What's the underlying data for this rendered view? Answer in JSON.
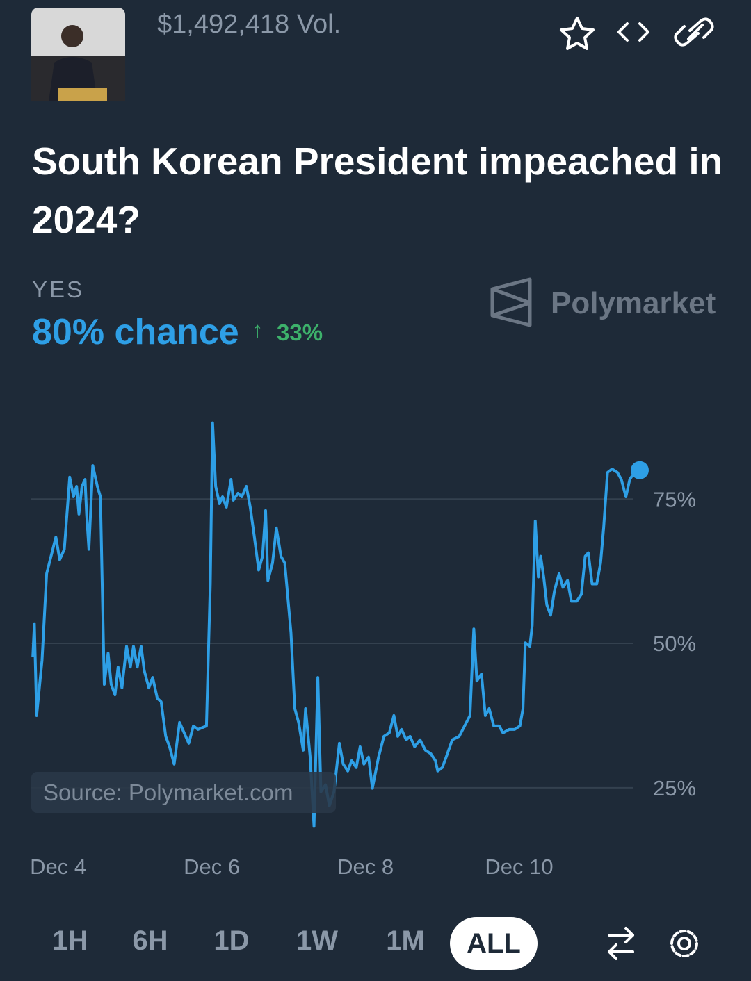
{
  "header": {
    "volume": "$1,492,418 Vol.",
    "title": "South Korean President impeached in 2024?"
  },
  "outcome": {
    "label": "YES",
    "chance": "80% chance",
    "change": "33%"
  },
  "brand": "Polymarket",
  "source": "Source: Polymarket.com",
  "range_buttons": [
    "1H",
    "6H",
    "1D",
    "1W",
    "1M",
    "ALL"
  ],
  "chart_data": {
    "type": "line",
    "color": "#2e9fe6",
    "grid": true,
    "x": [
      3.67,
      3.69,
      3.72,
      3.79,
      3.85,
      3.97,
      4.02,
      4.08,
      4.15,
      4.2,
      4.24,
      4.27,
      4.31,
      4.35,
      4.37,
      4.4,
      4.45,
      4.51,
      4.55,
      4.6,
      4.65,
      4.69,
      4.74,
      4.78,
      4.83,
      4.89,
      4.94,
      4.98,
      5.03,
      5.08,
      5.12,
      5.18,
      5.23,
      5.29,
      5.34,
      5.4,
      5.45,
      5.51,
      5.58,
      5.64,
      5.7,
      5.76,
      5.82,
      5.93,
      5.98,
      6.01,
      6.05,
      6.1,
      6.14,
      6.19,
      6.25,
      6.28,
      6.34,
      6.39,
      6.45,
      6.5,
      6.55,
      6.61,
      6.66,
      6.7,
      6.73,
      6.79,
      6.84,
      6.9,
      6.95,
      7.03,
      7.08,
      7.13,
      7.19,
      7.22,
      7.28,
      7.33,
      7.38,
      7.42,
      7.48,
      7.53,
      7.59,
      7.66,
      7.71,
      7.77,
      7.82,
      7.88,
      7.93,
      7.98,
      8.04,
      8.09,
      8.17,
      8.24,
      8.31,
      8.37,
      8.42,
      8.47,
      8.53,
      8.58,
      8.64,
      8.71,
      8.78,
      8.85,
      8.91,
      8.94,
      9.0,
      9.05,
      9.13,
      9.22,
      9.29,
      9.36,
      9.41,
      9.45,
      9.51,
      9.56,
      9.61,
      9.67,
      9.74,
      9.79,
      9.87,
      9.94,
      10.01,
      10.05,
      10.08,
      10.14,
      10.17,
      10.21,
      10.25,
      10.28,
      10.32,
      10.36,
      10.41,
      10.46,
      10.52,
      10.57,
      10.63,
      10.68,
      10.75,
      10.81,
      10.86,
      10.9,
      10.95,
      11.01,
      11.06,
      11.1,
      11.15,
      11.21,
      11.28,
      11.33,
      11.39,
      11.44,
      11.5,
      11.57
    ],
    "series": [
      {
        "name": "YES",
        "values": [
          47.7,
          53.4,
          37.5,
          47.1,
          62.1,
          68.4,
          64.5,
          66.3,
          78.8,
          75.4,
          77.2,
          72.4,
          77.2,
          78.4,
          72.4,
          66.3,
          80.8,
          77.2,
          75.4,
          42.9,
          48.3,
          42.9,
          41.1,
          45.9,
          42.3,
          49.5,
          45.9,
          49.5,
          45.9,
          49.5,
          45.3,
          42.3,
          44.1,
          40.5,
          39.9,
          33.9,
          32.1,
          29.1,
          36.3,
          34.5,
          32.7,
          35.7,
          35.1,
          35.7,
          60.3,
          88.2,
          77.2,
          74.2,
          75.4,
          73.6,
          78.4,
          74.8,
          76.0,
          75.4,
          77.2,
          73.6,
          68.8,
          62.7,
          65.1,
          73.0,
          60.9,
          63.9,
          70.0,
          65.1,
          63.9,
          51.9,
          38.7,
          36.3,
          31.5,
          38.7,
          30.3,
          18.3,
          44.1,
          24.3,
          25.5,
          21.9,
          24.3,
          32.7,
          29.1,
          27.9,
          29.7,
          28.5,
          32.1,
          29.1,
          30.3,
          24.9,
          30.3,
          33.9,
          34.5,
          37.5,
          33.9,
          35.1,
          33.3,
          33.9,
          32.1,
          33.3,
          31.5,
          30.9,
          29.7,
          27.9,
          28.5,
          30.3,
          33.3,
          33.9,
          35.7,
          37.5,
          52.5,
          43.5,
          44.7,
          37.5,
          38.7,
          35.7,
          35.7,
          34.5,
          35.1,
          35.1,
          35.7,
          38.7,
          50.1,
          49.5,
          53.1,
          71.2,
          61.5,
          65.1,
          61.5,
          56.7,
          54.9,
          59.1,
          62.1,
          59.7,
          60.9,
          57.3,
          57.3,
          58.5,
          65.1,
          65.7,
          60.3,
          60.3,
          63.9,
          70.0,
          79.6,
          80.2,
          79.6,
          78.4,
          75.4,
          78.4,
          79.6,
          80.0
        ]
      }
    ],
    "xlim": [
      3.65,
      11.57
    ],
    "xticks": [
      {
        "value": 4,
        "label": "Dec 4"
      },
      {
        "value": 6,
        "label": "Dec 6"
      },
      {
        "value": 8,
        "label": "Dec 8"
      },
      {
        "value": 10,
        "label": "Dec 10"
      }
    ],
    "ylim": [
      18,
      92
    ],
    "yticks": [
      {
        "value": 25,
        "label": "25%"
      },
      {
        "value": 50,
        "label": "50%"
      },
      {
        "value": 75,
        "label": "75%"
      }
    ]
  }
}
